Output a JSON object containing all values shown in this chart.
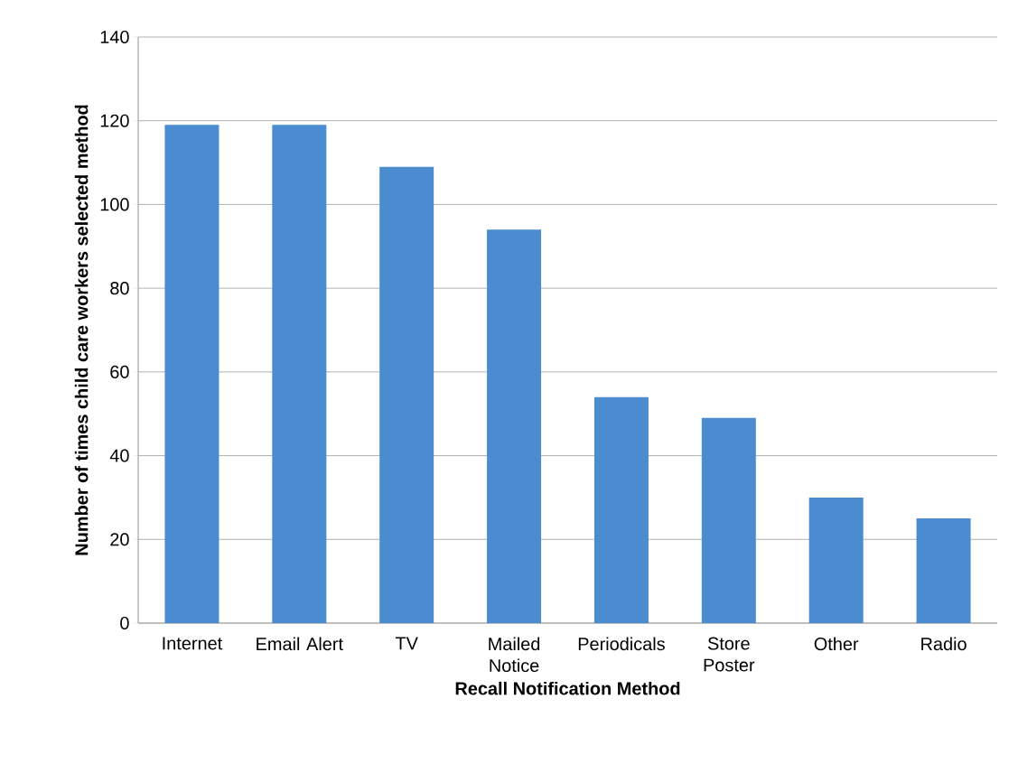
{
  "chart_data": {
    "type": "bar",
    "xlabel": "Recall Notification Method",
    "ylabel": "Number of times child care workers selected method",
    "categories": [
      "Internet",
      "Email Alert",
      "TV",
      "Mailed Notice",
      "Periodicals",
      "Store Poster",
      "Other",
      "Radio"
    ],
    "values": [
      119,
      119,
      109,
      94,
      54,
      49,
      30,
      25
    ],
    "color": "#4a8ccf",
    "ylim": [
      0,
      140
    ],
    "yticks": [
      0,
      20,
      40,
      60,
      80,
      100,
      120,
      140
    ],
    "grid": "y"
  }
}
